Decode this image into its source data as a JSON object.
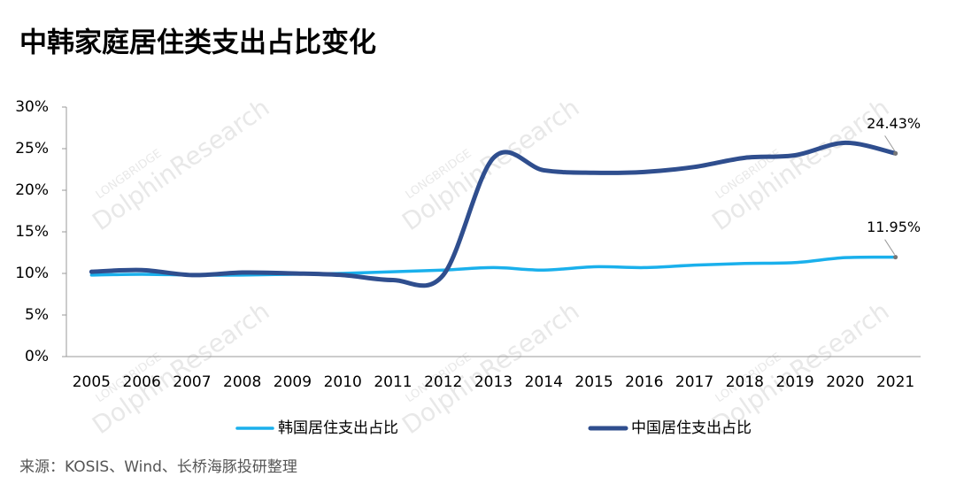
{
  "chart_data": {
    "type": "line",
    "title": "中韩家庭居住类支出占比变化",
    "categories": [
      "2005",
      "2006",
      "2007",
      "2008",
      "2009",
      "2010",
      "2011",
      "2012",
      "2013",
      "2014",
      "2015",
      "2016",
      "2017",
      "2018",
      "2019",
      "2020",
      "2021"
    ],
    "series": [
      {
        "name": "韩国居住支出占比",
        "color": "#1ab0ec",
        "values": [
          9.8,
          9.9,
          9.8,
          9.8,
          9.9,
          10.0,
          10.2,
          10.4,
          10.7,
          10.4,
          10.8,
          10.7,
          11.0,
          11.2,
          11.3,
          11.9,
          11.95
        ],
        "value_labels": [
          null,
          null,
          null,
          null,
          null,
          null,
          null,
          null,
          null,
          null,
          null,
          null,
          null,
          null,
          null,
          null,
          "11.95%"
        ]
      },
      {
        "name": "中国居住支出占比",
        "color": "#2f4e8e",
        "values": [
          10.2,
          10.4,
          9.8,
          10.1,
          10.0,
          9.8,
          9.2,
          9.8,
          23.9,
          22.4,
          22.1,
          22.2,
          22.8,
          23.9,
          24.2,
          25.7,
          24.43
        ],
        "value_labels": [
          null,
          null,
          null,
          null,
          null,
          null,
          null,
          null,
          null,
          null,
          null,
          null,
          null,
          null,
          null,
          null,
          "24.43%"
        ]
      }
    ],
    "ylim": [
      0,
      30
    ],
    "yticks": [
      {
        "value": 0,
        "label": "0%"
      },
      {
        "value": 5,
        "label": "5%"
      },
      {
        "value": 10,
        "label": "10%"
      },
      {
        "value": 15,
        "label": "15%"
      },
      {
        "value": 20,
        "label": "20%"
      },
      {
        "value": 25,
        "label": "25%"
      },
      {
        "value": 30,
        "label": "30%"
      }
    ],
    "grid": false,
    "legend": "bottom",
    "source": "来源：KOSIS、Wind、长桥海豚投研整理",
    "watermark": [
      "LONGBRIDGE",
      "DolphinResearch"
    ]
  }
}
